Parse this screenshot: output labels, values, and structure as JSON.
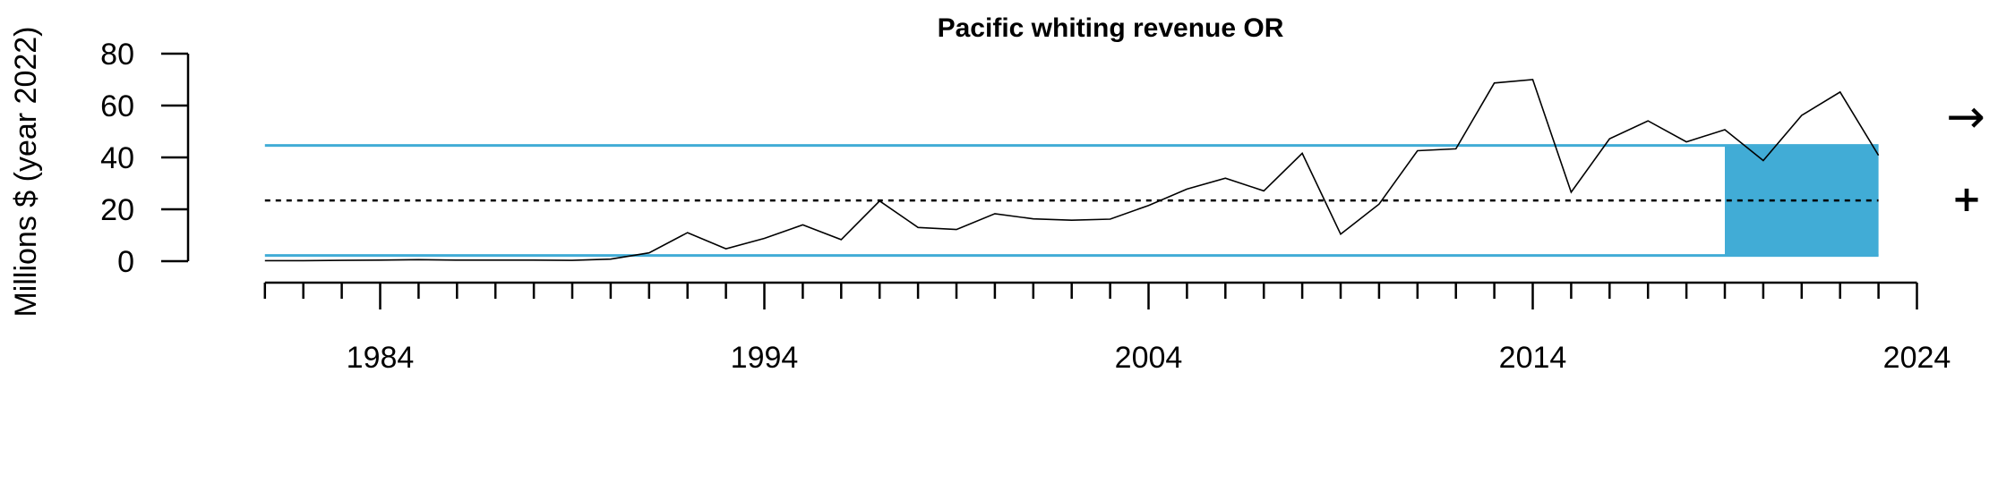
{
  "chart_data": {
    "type": "line",
    "title": "Pacific whiting revenue OR",
    "ylabel": "Millions $ (year 2022)",
    "xlabel": "",
    "y_ticks": [
      0,
      20,
      40,
      60,
      80
    ],
    "x_ticks": [
      1984,
      1994,
      2004,
      2014,
      2024
    ],
    "xlim": [
      1981,
      2024
    ],
    "ylim": [
      0,
      80
    ],
    "series": [
      {
        "x": [
          1981,
          1982,
          1983,
          1984,
          1985,
          1986,
          1987,
          1988,
          1989,
          1990,
          1991,
          1992,
          1993,
          1994,
          1995,
          1996,
          1997,
          1998,
          1999,
          2000,
          2001,
          2002,
          2003,
          2004,
          2005,
          2006,
          2007,
          2008,
          2009,
          2010,
          2011,
          2012,
          2013,
          2014,
          2015,
          2016,
          2017,
          2018,
          2019,
          2020,
          2021,
          2022,
          2023
        ],
        "values": [
          0.2,
          0.2,
          0.3,
          0.4,
          0.6,
          0.4,
          0.4,
          0.4,
          0.3,
          0.8,
          3.2,
          11,
          4.8,
          8.8,
          14,
          8.3,
          23.2,
          13,
          12.2,
          18.3,
          16.3,
          15.8,
          16.2,
          21.5,
          27.8,
          32,
          27.1,
          41.6,
          10.4,
          22,
          42.6,
          43.3,
          68.7,
          70,
          26.6,
          47.2,
          54.1,
          46,
          50.7,
          38.8,
          56.2,
          65.2,
          40.8
        ],
        "color": "#000000"
      }
    ],
    "mean_line": 23.4,
    "upper_sd_line": 44.6,
    "lower_sd_line": 2.2,
    "highlight_range": [
      2019,
      2023
    ],
    "band_color": "#41acd6",
    "trend_symbol": "→",
    "mean_symbol": "+"
  }
}
